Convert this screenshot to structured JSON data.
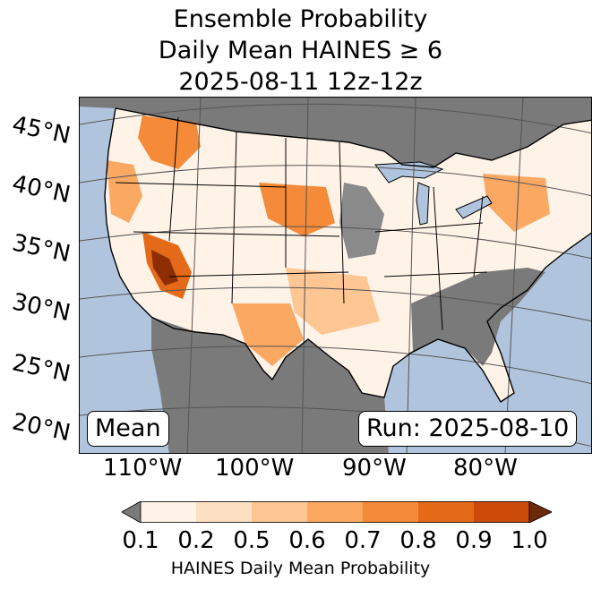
{
  "title": {
    "line1": "Ensemble Probability",
    "line2": "Daily Mean HAINES ≥ 6",
    "line3": "2025-08-11 12z-12z"
  },
  "map": {
    "region": "CONUS",
    "lat_labels": [
      "45°N",
      "40°N",
      "35°N",
      "30°N",
      "25°N",
      "20°N"
    ],
    "lon_labels": [
      "110°W",
      "100°W",
      "90°W",
      "80°W"
    ],
    "colors": {
      "ocean": "#b0c4dd",
      "below_threshold": "#7a7a7a",
      "boundary": "#000000",
      "graticule": "#555555"
    }
  },
  "badges": {
    "left": "Mean",
    "right": "Run: 2025-08-10"
  },
  "colorbar": {
    "label": "HAINES Daily Mean Probability",
    "ticks": [
      "0.1",
      "0.2",
      "0.5",
      "0.6",
      "0.7",
      "0.8",
      "0.9",
      "1.0"
    ],
    "under_color": "#7a7a7a",
    "over_color": "#6b2a08",
    "colors": [
      "#fff3e8",
      "#fddfc1",
      "#fdc693",
      "#fba863",
      "#f58a38",
      "#e46a19",
      "#cc4a07"
    ]
  },
  "chart_data": {
    "type": "heatmap",
    "title": "Ensemble Probability Daily Mean HAINES ≥ 6 2025-08-11 12z-12z",
    "xlabel": "",
    "ylabel": "",
    "colorbar_label": "HAINES Daily Mean Probability",
    "levels": [
      0.1,
      0.2,
      0.5,
      0.6,
      0.7,
      0.8,
      0.9,
      1.0
    ],
    "extend": "both",
    "annotations": [
      "Mean",
      "Run: 2025-08-10"
    ]
  }
}
